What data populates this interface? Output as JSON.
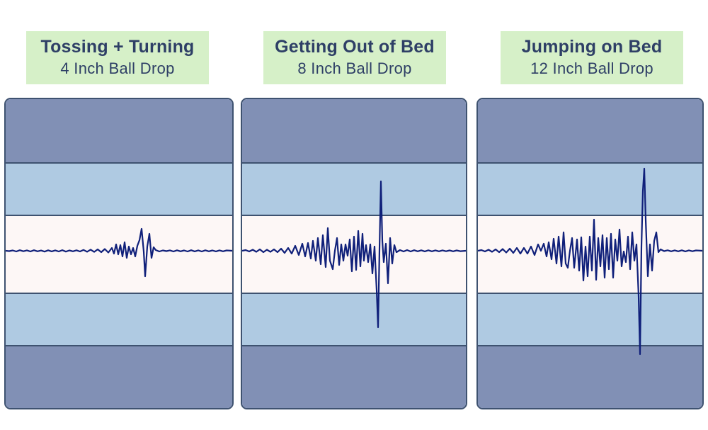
{
  "colors": {
    "label_bg": "#d6f0c8",
    "label_text": "#2e3f66",
    "outer_band": "#8190b5",
    "mid_band": "#afcae2",
    "center_band": "#fdf7f6",
    "border": "#3e5270",
    "wave": "#10207a"
  },
  "panels": [
    {
      "title": "Tossing + Turning",
      "subtitle": "4 Inch Ball Drop"
    },
    {
      "title": "Getting Out of Bed",
      "subtitle": "8 Inch Ball Drop"
    },
    {
      "title": "Jumping on Bed",
      "subtitle": "12 Inch Ball Drop"
    }
  ]
}
